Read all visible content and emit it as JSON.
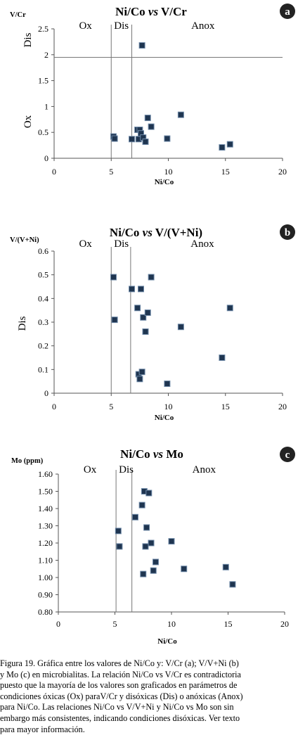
{
  "chart_data": [
    {
      "type": "scatter",
      "panel_letter": "a",
      "title": "Ni/Co vs V/Cr",
      "title_parts": [
        "Ni/Co ",
        "vs",
        " V/Cr"
      ],
      "xlabel": "Ni/Co",
      "ylabel": "V/Cr",
      "xlim": [
        0,
        20
      ],
      "ylim": [
        0,
        2.5
      ],
      "xticks": [
        "0",
        "5",
        "10",
        "15",
        "20"
      ],
      "yticks": [
        "0",
        "0.5",
        "1",
        "1.5",
        "2",
        "2.5"
      ],
      "zones": {
        "ox": "Ox",
        "dis": "Dis",
        "anox": "Anox"
      },
      "side_labels": {
        "dis": "Dis",
        "ox": "Ox"
      },
      "vlines": [
        5,
        6.8
      ],
      "hline": 1.95,
      "points": [
        {
          "x": 5.2,
          "y": 0.42
        },
        {
          "x": 5.3,
          "y": 0.38
        },
        {
          "x": 6.8,
          "y": 0.37
        },
        {
          "x": 7.3,
          "y": 0.55
        },
        {
          "x": 7.4,
          "y": 0.37
        },
        {
          "x": 7.5,
          "y": 0.55
        },
        {
          "x": 7.6,
          "y": 0.48
        },
        {
          "x": 7.7,
          "y": 2.18
        },
        {
          "x": 7.8,
          "y": 0.4
        },
        {
          "x": 8.0,
          "y": 0.32
        },
        {
          "x": 8.2,
          "y": 0.78
        },
        {
          "x": 8.5,
          "y": 0.61
        },
        {
          "x": 9.9,
          "y": 0.38
        },
        {
          "x": 11.1,
          "y": 0.84
        },
        {
          "x": 14.7,
          "y": 0.21
        },
        {
          "x": 15.4,
          "y": 0.27
        }
      ]
    },
    {
      "type": "scatter",
      "panel_letter": "b",
      "title": "Ni/Co vs V/(V+Ni)",
      "title_parts": [
        "Ni/Co ",
        "vs",
        " V/(V+Ni)"
      ],
      "xlabel": "Ni/Co",
      "ylabel": "V/(V+Ni)",
      "xlim": [
        0,
        20
      ],
      "ylim": [
        0,
        0.6
      ],
      "xticks": [
        "0",
        "5",
        "10",
        "15",
        "20"
      ],
      "yticks": [
        "0",
        "0.1",
        "0.2",
        "0.3",
        "0.4",
        "0.5",
        "0.6"
      ],
      "zones": {
        "ox": "Ox",
        "dis": "Dis",
        "anox": "Anox"
      },
      "side_labels": {
        "dis": "Dis"
      },
      "vlines": [
        5,
        6.7
      ],
      "points": [
        {
          "x": 5.2,
          "y": 0.49
        },
        {
          "x": 5.3,
          "y": 0.31
        },
        {
          "x": 6.8,
          "y": 0.44
        },
        {
          "x": 7.3,
          "y": 0.36
        },
        {
          "x": 7.4,
          "y": 0.08
        },
        {
          "x": 7.5,
          "y": 0.06
        },
        {
          "x": 7.6,
          "y": 0.44
        },
        {
          "x": 7.7,
          "y": 0.09
        },
        {
          "x": 7.8,
          "y": 0.32
        },
        {
          "x": 8.0,
          "y": 0.26
        },
        {
          "x": 8.2,
          "y": 0.34
        },
        {
          "x": 8.5,
          "y": 0.49
        },
        {
          "x": 9.9,
          "y": 0.04
        },
        {
          "x": 11.1,
          "y": 0.28
        },
        {
          "x": 14.7,
          "y": 0.15
        },
        {
          "x": 15.4,
          "y": 0.36
        }
      ]
    },
    {
      "type": "scatter",
      "panel_letter": "c",
      "title": "Ni/Co vs Mo",
      "title_parts": [
        "Ni/Co ",
        "vs",
        " Mo"
      ],
      "xlabel": "Ni/Co",
      "ylabel": "Mo (ppm)",
      "xlim": [
        0,
        20
      ],
      "ylim": [
        0.8,
        1.6
      ],
      "xticks": [
        "0",
        "5",
        "10",
        "15",
        "20"
      ],
      "yticks": [
        "0.80",
        "0.90",
        "1.00",
        "1.10",
        "1.20",
        "1.30",
        "1.40",
        "1.50",
        "1.60"
      ],
      "zones": {
        "ox": "Ox",
        "dis": "Dis",
        "anox": "Anox"
      },
      "vlines": [
        5.1,
        6.5
      ],
      "points": [
        {
          "x": 5.3,
          "y": 1.27
        },
        {
          "x": 5.4,
          "y": 1.18
        },
        {
          "x": 6.8,
          "y": 1.35
        },
        {
          "x": 7.4,
          "y": 1.42
        },
        {
          "x": 7.5,
          "y": 1.02
        },
        {
          "x": 7.6,
          "y": 1.5
        },
        {
          "x": 7.7,
          "y": 1.18
        },
        {
          "x": 7.8,
          "y": 1.29
        },
        {
          "x": 8.0,
          "y": 1.49
        },
        {
          "x": 8.2,
          "y": 1.2
        },
        {
          "x": 8.4,
          "y": 1.04
        },
        {
          "x": 8.6,
          "y": 1.09
        },
        {
          "x": 10.0,
          "y": 1.21
        },
        {
          "x": 11.1,
          "y": 1.05
        },
        {
          "x": 14.8,
          "y": 1.06
        },
        {
          "x": 15.4,
          "y": 0.96
        }
      ]
    }
  ],
  "caption_lines": [
    "Figura 19. Gráfica entre los valores de Ni/Co y: V/Cr (a); V/V+Ni (b)",
    "y Mo (c) en microbialitas. La relación Ni/Co vs V/Cr es contradictoria",
    "puesto que la mayoría de los valores son graficados en parámetros de",
    "condiciones óxicas (Ox) paraV/Cr y disóxicas (Dis) o anóxicas (Anox)",
    "para Ni/Co. Las relaciones Ni/Co vs V/V+Ni y Ni/Co vs Mo son sin",
    "embargo más consistentes, indicando condiciones disóxicas. Ver texto",
    "para mayor información."
  ]
}
